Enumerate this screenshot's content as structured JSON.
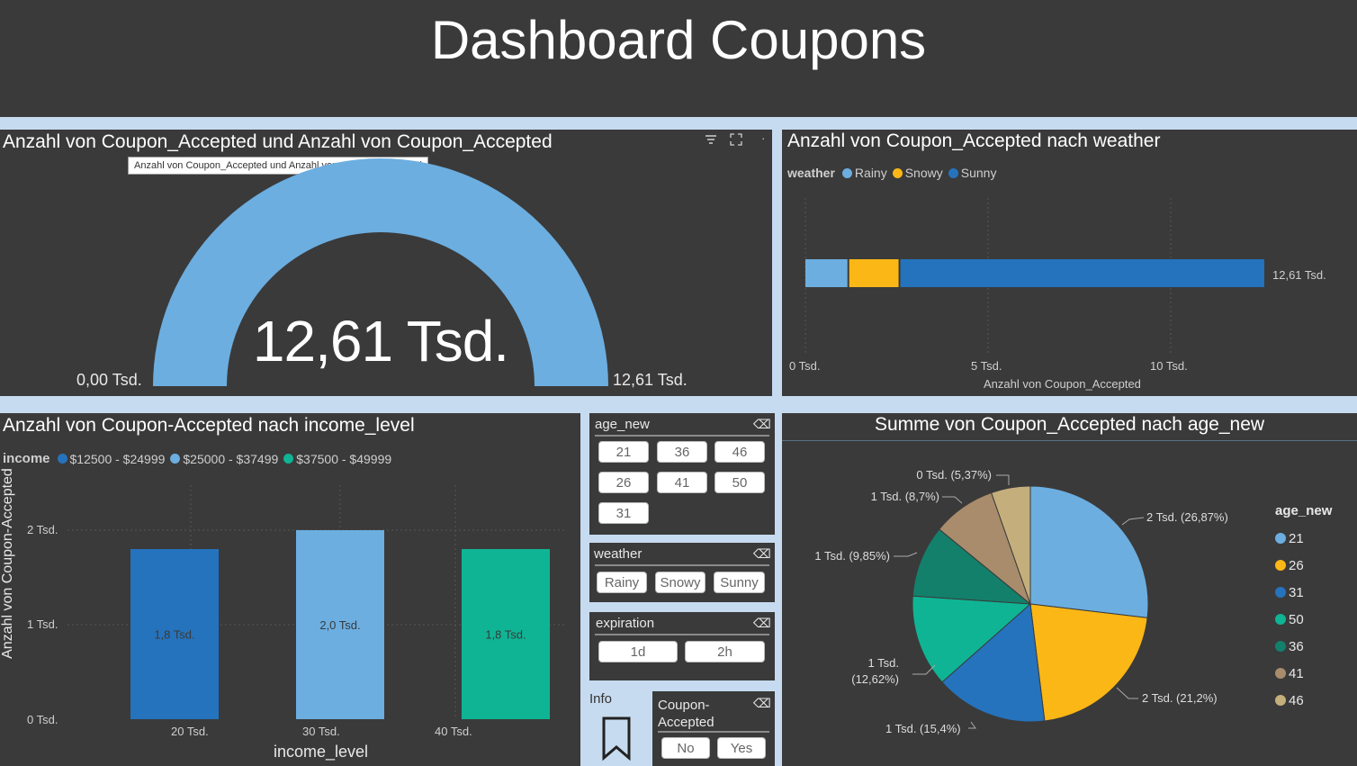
{
  "header": {
    "title": "Dashboard Coupons"
  },
  "gauge": {
    "title": "Anzahl von Coupon_Accepted und Anzahl von Coupon_Accepted",
    "tooltip": "Anzahl von Coupon_Accepted und Anzahl von Coupon_Accepted",
    "value_label": "12,61 Tsd.",
    "min_label": "0,00 Tsd.",
    "max_label": "12,61 Tsd.",
    "color": "#6caee0"
  },
  "weather_chart": {
    "title": "Anzahl von Coupon_Accepted nach weather",
    "legend_title": "weather",
    "legend": [
      {
        "name": "Rainy",
        "color": "#6caee0"
      },
      {
        "name": "Snowy",
        "color": "#fbb716"
      },
      {
        "name": "Sunny",
        "color": "#2573bd"
      }
    ],
    "total_label": "12,61 Tsd.",
    "x_ticks": [
      "0 Tsd.",
      "5 Tsd.",
      "10 Tsd."
    ],
    "xlabel": "Anzahl von Coupon_Accepted"
  },
  "income_chart": {
    "title": "Anzahl von Coupon-Accepted nach income_level",
    "legend_title": "income",
    "legend": [
      {
        "name": "$12500 - $24999",
        "color": "#2573bd"
      },
      {
        "name": "$25000 - $37499",
        "color": "#6caee0"
      },
      {
        "name": "$37500 - $49999",
        "color": "#0fb494"
      }
    ],
    "y_ticks": [
      "2 Tsd.",
      "1 Tsd.",
      "0 Tsd."
    ],
    "x_ticks": [
      "20 Tsd.",
      "30 Tsd.",
      "40 Tsd."
    ],
    "bar_labels": [
      "1,8 Tsd.",
      "2,0 Tsd.",
      "1,8 Tsd."
    ],
    "xlabel": "income_level",
    "ylabel": "Anzahl von Coupon-Accepted"
  },
  "slicers": {
    "age": {
      "title": "age_new",
      "options": [
        "21",
        "36",
        "46",
        "26",
        "41",
        "50",
        "31"
      ]
    },
    "weather": {
      "title": "weather",
      "options": [
        "Rainy",
        "Snowy",
        "Sunny"
      ]
    },
    "expiration": {
      "title": "expiration",
      "options": [
        "1d",
        "2h"
      ]
    },
    "coupon": {
      "title_line1": "Coupon-",
      "title_line2": "Accepted",
      "options": [
        "No",
        "Yes"
      ]
    }
  },
  "info": {
    "label": "Info"
  },
  "pie_chart": {
    "title": "Summe von Coupon_Accepted nach age_new",
    "legend_title": "age_new",
    "legend": [
      {
        "name": "21",
        "color": "#6caee0"
      },
      {
        "name": "26",
        "color": "#fbb716"
      },
      {
        "name": "31",
        "color": "#2573bd"
      },
      {
        "name": "50",
        "color": "#0fb494"
      },
      {
        "name": "36",
        "color": "#13806b"
      },
      {
        "name": "41",
        "color": "#a88c6c"
      },
      {
        "name": "46",
        "color": "#c4af7c"
      }
    ],
    "slice_labels": [
      "2 Tsd. (26,87%)",
      "2 Tsd. (21,2%)",
      "1 Tsd. (15,4%)",
      "1 Tsd.",
      "(12,62%)",
      "1 Tsd. (9,85%)",
      "1 Tsd. (8,7%)",
      "0 Tsd. (5,37%)"
    ]
  },
  "chart_data": [
    {
      "type": "pie",
      "title": "Anzahl von Coupon_Accepted und Anzahl von Coupon_Accepted",
      "subtype": "gauge",
      "value": 12.61,
      "min": 0,
      "max": 12.61,
      "unit": "Tsd."
    },
    {
      "type": "bar",
      "title": "Anzahl von Coupon_Accepted nach weather",
      "orientation": "horizontal-stacked",
      "series": [
        {
          "name": "Rainy",
          "values": [
            1.2
          ]
        },
        {
          "name": "Snowy",
          "values": [
            1.4
          ]
        },
        {
          "name": "Sunny",
          "values": [
            10.01
          ]
        }
      ],
      "total": 12.61,
      "xlabel": "Anzahl von Coupon_Accepted",
      "xlim": [
        0,
        13
      ],
      "unit": "Tsd."
    },
    {
      "type": "bar",
      "title": "Anzahl von Coupon-Accepted nach income_level",
      "categories": [
        "20 Tsd.",
        "30 Tsd.",
        "40 Tsd."
      ],
      "series": [
        {
          "name": "$12500 - $24999",
          "values": [
            1.8,
            0,
            0
          ]
        },
        {
          "name": "$25000 - $37499",
          "values": [
            0,
            2.0,
            0
          ]
        },
        {
          "name": "$37500 - $49999",
          "values": [
            0,
            0,
            1.8
          ]
        }
      ],
      "xlabel": "income_level",
      "ylabel": "Anzahl von Coupon-Accepted",
      "ylim": [
        0,
        2.2
      ],
      "unit": "Tsd."
    },
    {
      "type": "pie",
      "title": "Summe von Coupon_Accepted nach age_new",
      "categories": [
        "21",
        "26",
        "31",
        "50",
        "36",
        "41",
        "46"
      ],
      "values": [
        26.87,
        21.2,
        15.4,
        12.62,
        9.85,
        8.7,
        5.37
      ],
      "unit": "%"
    }
  ]
}
